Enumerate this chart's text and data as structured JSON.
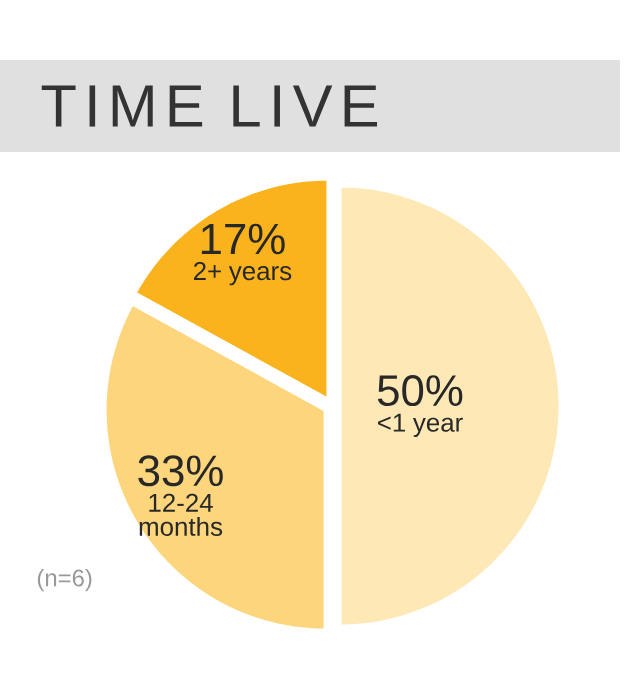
{
  "chart_data": {
    "type": "pie",
    "title": "TIME LIVE",
    "categories": [
      "<1 year",
      "12-24 months",
      "2+ years"
    ],
    "values": [
      50,
      33,
      17
    ],
    "value_labels": [
      "50%",
      "33%",
      "17%"
    ],
    "colors": [
      "#fde8b6",
      "#fdd57c",
      "#fab31c"
    ],
    "annotations": [
      "(n=6)"
    ]
  }
}
